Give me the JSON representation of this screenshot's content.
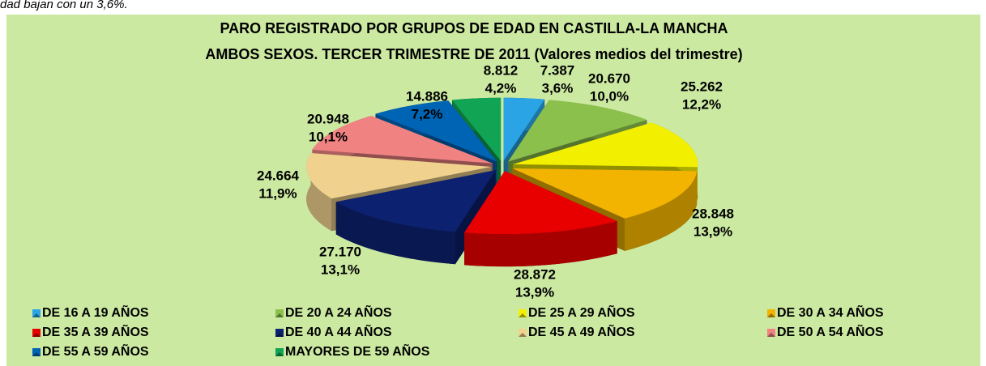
{
  "page_text": "dad bajan con un 3,6%.",
  "chart_data": {
    "type": "pie",
    "title": "PARO REGISTRADO POR GRUPOS DE EDAD EN CASTILLA-LA MANCHA",
    "subtitle": "AMBOS SEXOS. TERCER TRIMESTRE DE 2011 (Valores medios del trimestre)",
    "categories": [
      "DE 16 A 19 AÑOS",
      "DE 20 A 24 AÑOS",
      "DE 25 A 29 AÑOS",
      "DE 30 A 34 AÑOS",
      "DE 35 A 39 AÑOS",
      "DE 40 A 44 AÑOS",
      "DE 45 A 49 AÑOS",
      "DE 50 A 54 AÑOS",
      "DE 55 A 59 AÑOS",
      "MAYORES DE 59 AÑOS"
    ],
    "values": [
      7387,
      20670,
      25262,
      28848,
      28872,
      27170,
      24664,
      20948,
      14886,
      8812
    ],
    "value_labels": [
      "7.387",
      "20.670",
      "25.262",
      "28.848",
      "28.872",
      "27.170",
      "24.664",
      "20.948",
      "14.886",
      "8.812"
    ],
    "percents": [
      3.6,
      10.0,
      12.2,
      13.9,
      13.9,
      13.1,
      11.9,
      10.1,
      7.2,
      4.2
    ],
    "percent_labels": [
      "3,6%",
      "10,0%",
      "12,2%",
      "13,9%",
      "13,9%",
      "13,1%",
      "11,9%",
      "10,1%",
      "7,2%",
      "4,2%"
    ],
    "colors": [
      "#2aa4e4",
      "#8cc04c",
      "#f2f000",
      "#f2b400",
      "#e80000",
      "#0c2270",
      "#f0d28e",
      "#f08282",
      "#0064b4",
      "#10a454"
    ],
    "legend": "bottom"
  }
}
